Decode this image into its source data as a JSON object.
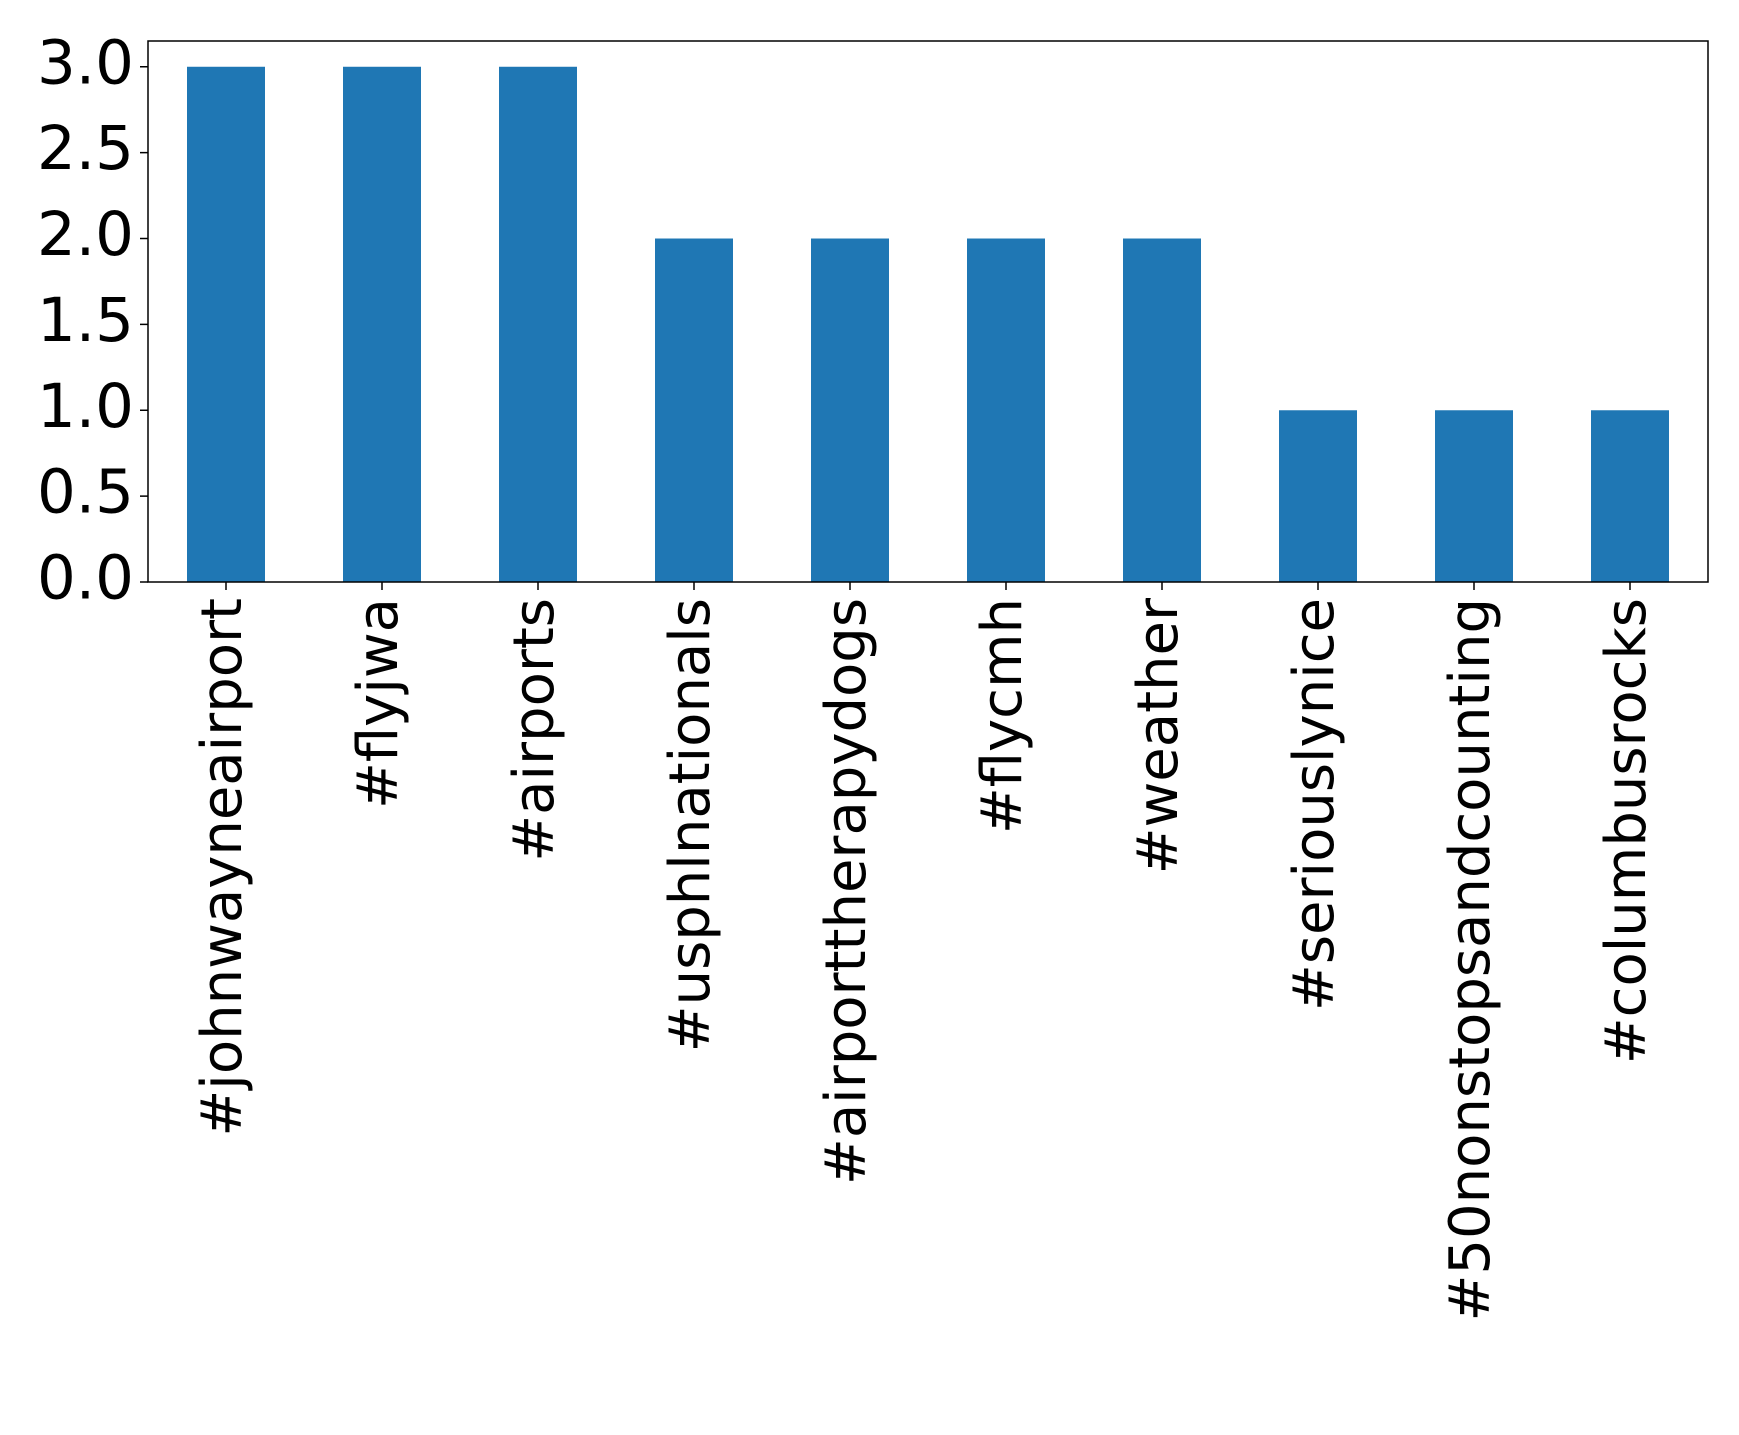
{
  "chart_data": {
    "type": "bar",
    "categories": [
      "#johnwayneairport",
      "#flyjwa",
      "#airports",
      "#usphlnationals",
      "#airporttherapydogs",
      "#flycmh",
      "#weather",
      "#seriouslynice",
      "#50nonstopsandcounting",
      "#columbusrocks"
    ],
    "values": [
      3,
      3,
      3,
      2,
      2,
      2,
      2,
      1,
      1,
      1
    ],
    "color": "#1f77b4",
    "ylim": [
      0,
      3.15
    ],
    "yticks": [
      {
        "value": 0,
        "label": "0.0"
      },
      0.5,
      {
        "value": 1,
        "label": "1.0"
      },
      1.5,
      {
        "value": 2,
        "label": "2.0"
      },
      2.5,
      {
        "value": 3,
        "label": "3.0"
      }
    ],
    "grid": false
  }
}
